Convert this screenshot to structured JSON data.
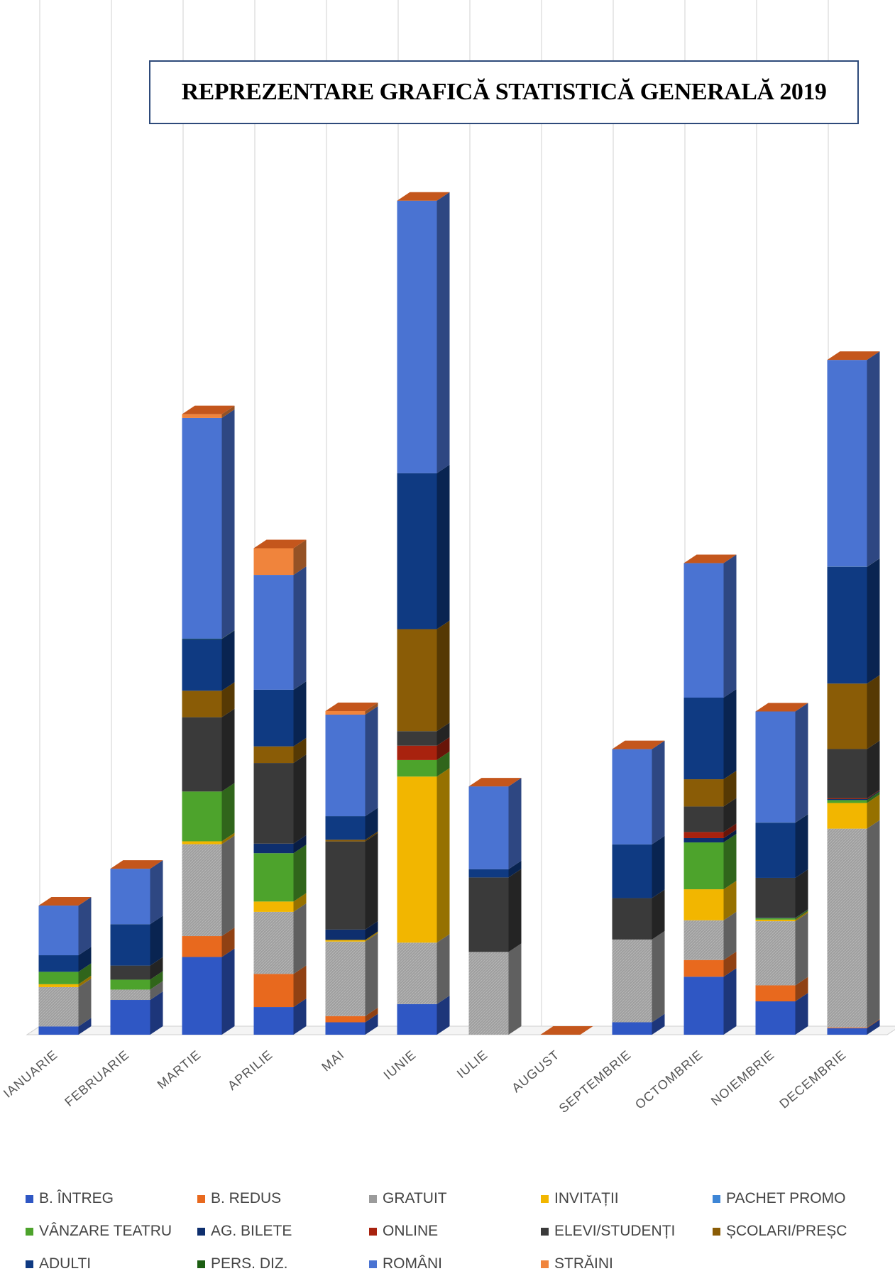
{
  "chart_data": {
    "type": "bar",
    "stacked": true,
    "title": "REPREZENTARE GRAFICĂ STATISTICĂ GENERALĂ 2019",
    "categories": [
      "IANUARIE",
      "FEBRUARIE",
      "MARTIE",
      "APRILIE",
      "MAI",
      "IUNIE",
      "IULIE",
      "AUGUST",
      "SEPTEMBRIE",
      "OCTOMBRIE",
      "NOIEMBRIE",
      "DECEMBRIE"
    ],
    "ylim": [
      0,
      25000
    ],
    "grid": true,
    "legend_position": "bottom",
    "series": [
      {
        "name": "B. ÎNTREG",
        "color": "#2f57c4",
        "values": [
          200,
          840,
          1878,
          668,
          300,
          740,
          0,
          0,
          300,
          1401,
          806,
          158
        ]
      },
      {
        "name": "B. REDUS",
        "color": "#e8691e",
        "values": [
          0,
          0,
          505,
          800,
          150,
          0,
          0,
          0,
          0,
          404,
          386,
          18
        ]
      },
      {
        "name": "GRATUIT",
        "color": "#9b9b9b",
        "values": [
          950,
          250,
          2220,
          1500,
          1800,
          1485,
          2000,
          0,
          2000,
          959,
          1550,
          4803
        ]
      },
      {
        "name": "INVITAȚII",
        "color": "#f2b600",
        "values": [
          70,
          0,
          70,
          250,
          40,
          4012,
          0,
          0,
          0,
          750,
          38,
          620
        ]
      },
      {
        "name": "PACHET PROMO",
        "color": "#3e86d6",
        "values": [
          0,
          0,
          0,
          0,
          0,
          0,
          0,
          0,
          0,
          0,
          0,
          0
        ]
      },
      {
        "name": "VÂNZARE TEATRU",
        "color": "#4da32c",
        "values": [
          300,
          240,
          1203,
          1168,
          0,
          400,
          0,
          0,
          0,
          1132,
          36,
          70
        ]
      },
      {
        "name": "AG. BILETE",
        "color": "#0e2f6e",
        "values": [
          0,
          0,
          0,
          230,
          250,
          0,
          0,
          0,
          0,
          104,
          8,
          24
        ]
      },
      {
        "name": "ONLINE",
        "color": "#a8220e",
        "values": [
          0,
          0,
          0,
          0,
          0,
          347,
          0,
          0,
          0,
          147,
          0,
          18
        ]
      },
      {
        "name": "ELEVI/STUDENȚI",
        "color": "#3a3a3a",
        "values": [
          0,
          340,
          1795,
          1950,
          2130,
          350,
          1800,
          0,
          1000,
          617,
          966,
          1191
        ]
      },
      {
        "name": "ȘCOLARI/PREȘC",
        "color": "#8a5c06",
        "values": [
          0,
          0,
          640,
          400,
          40,
          2465,
          0,
          0,
          0,
          658,
          0,
          1582
        ]
      },
      {
        "name": "ADULTI",
        "color": "#0f3a82",
        "values": [
          400,
          1000,
          1250,
          1368,
          570,
          3769,
          200,
          0,
          1300,
          1973,
          1332,
          2817
        ]
      },
      {
        "name": "PERS. DIZ.",
        "color": "#1c5e12",
        "values": [
          0,
          0,
          7,
          1,
          0,
          0,
          0,
          0,
          0,
          0,
          2,
          4
        ]
      },
      {
        "name": "ROMÂNI",
        "color": "#4a73d2",
        "values": [
          1200,
          1340,
          5334,
          2775,
          2453,
          6584,
          2000,
          0,
          2300,
          3248,
          2687,
          4999
        ]
      },
      {
        "name": "STRĂINI",
        "color": "#f0843c",
        "values": [
          0,
          0,
          90,
          644,
          87,
          0,
          0,
          0,
          0,
          0,
          0,
          0
        ]
      }
    ]
  }
}
